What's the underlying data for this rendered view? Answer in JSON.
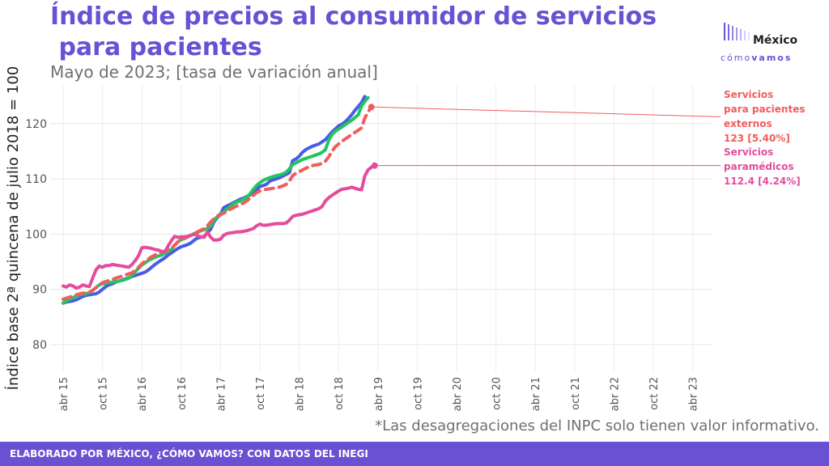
{
  "header": {
    "title_line1": "Índice de precios al consumidor de servicios",
    "title_line2": " para pacientes",
    "subtitle": "Mayo de 2023; [tasa de variación anual]"
  },
  "logo": {
    "word": "México",
    "sub_light": "cómo",
    "sub_bold": "vamos"
  },
  "note": "*Las desagregaciones del INPC solo tienen valor informativo.",
  "footer": "ELABORADO POR MÉXICO, ¿CÓMO VAMOS? CON DATOS DEL INEGI",
  "colors": {
    "accent": "#6a50d3"
  },
  "chart_data": {
    "type": "line",
    "ylabel": "Índice base 2ª quincena de julio 2018 = 100",
    "xlabel": "",
    "ylim": [
      75,
      127
    ],
    "yticks": [
      80,
      90,
      100,
      110,
      120
    ],
    "xticks": [
      "abr 15",
      "oct 15",
      "abr 16",
      "oct 16",
      "abr 17",
      "oct 17",
      "abr 18",
      "oct 18",
      "abr 19",
      "oct 19",
      "abr 20",
      "oct 20",
      "abr 21",
      "oct 21",
      "abr 22",
      "oct 22",
      "abr 23"
    ],
    "grid": true,
    "x_start": "abr 15",
    "x_step": "quincena",
    "series": [
      {
        "color": "#4a5be6",
        "dash": false,
        "values": [
          87.5,
          87.7,
          87.8,
          87.9,
          88.1,
          88.4,
          88.7,
          88.9,
          89.0,
          89.1,
          89.2,
          89.5,
          90.0,
          90.5,
          90.8,
          91.0,
          91.3,
          91.5,
          91.7,
          91.9,
          92.1,
          92.3,
          92.5,
          92.7,
          92.9,
          93.1,
          93.5,
          94.0,
          94.5,
          94.9,
          95.3,
          95.7,
          96.2,
          96.6,
          97.0,
          97.4,
          97.7,
          97.9,
          98.1,
          98.4,
          98.9,
          99.3,
          99.4,
          99.6,
          100.2,
          100.9,
          102.2,
          103.0,
          103.6,
          104.8,
          105.1,
          105.4,
          105.7,
          106.0,
          106.3,
          106.5,
          106.8,
          107.1,
          107.4,
          108.0,
          108.6,
          108.8,
          109.0,
          109.6,
          109.8,
          110.0,
          110.2,
          110.5,
          110.8,
          111.1,
          113.3,
          113.6,
          114.1,
          114.8,
          115.3,
          115.6,
          115.9,
          116.1,
          116.3,
          116.7,
          117.1,
          117.8,
          118.5,
          119.0,
          119.6,
          119.9,
          120.3,
          120.9,
          121.6,
          122.4,
          123.1,
          123.8,
          124.9
        ]
      },
      {
        "color": "#22c55e",
        "dash": false,
        "values": [
          87.5,
          87.9,
          88.2,
          88.5,
          88.8,
          89.0,
          89.1,
          89.2,
          89.4,
          89.8,
          90.3,
          90.8,
          91.0,
          91.1,
          91.2,
          91.3,
          91.4,
          91.5,
          91.6,
          91.8,
          92.0,
          92.5,
          93.2,
          93.8,
          94.4,
          94.8,
          95.2,
          95.5,
          95.8,
          96.0,
          96.2,
          96.5,
          96.8,
          97.2,
          98.0,
          98.6,
          99.0,
          99.2,
          99.5,
          99.8,
          100.1,
          100.3,
          100.6,
          100.8,
          101.0,
          101.5,
          102.5,
          103.2,
          103.7,
          104.0,
          104.5,
          105.0,
          105.5,
          105.8,
          106.0,
          106.3,
          106.7,
          107.3,
          108.1,
          108.8,
          109.3,
          109.7,
          110.0,
          110.2,
          110.4,
          110.6,
          110.7,
          110.9,
          111.2,
          111.8,
          112.6,
          112.9,
          113.2,
          113.5,
          113.7,
          113.9,
          114.1,
          114.3,
          114.5,
          114.8,
          115.3,
          117.0,
          118.0,
          118.6,
          119.0,
          119.4,
          119.8,
          120.2,
          120.6,
          121.1,
          121.6,
          123.2,
          124.0,
          124.7
        ]
      },
      {
        "color": "#f25c5c",
        "dash": true,
        "values": [
          88.2,
          88.4,
          88.6,
          88.8,
          89.0,
          89.2,
          89.3,
          89.4,
          89.5,
          89.8,
          90.3,
          90.8,
          91.2,
          91.4,
          91.6,
          91.8,
          92.0,
          92.2,
          92.4,
          92.6,
          92.8,
          93.0,
          93.4,
          94.0,
          94.6,
          95.1,
          95.5,
          95.9,
          96.2,
          96.5,
          96.7,
          96.9,
          97.1,
          97.4,
          98.0,
          98.6,
          99.0,
          99.2,
          99.5,
          99.8,
          100.1,
          100.4,
          100.7,
          101.0,
          101.5,
          102.2,
          102.8,
          103.2,
          103.5,
          103.8,
          104.1,
          104.5,
          104.8,
          105.1,
          105.4,
          105.6,
          106.0,
          106.5,
          107.0,
          107.5,
          107.8,
          108.0,
          108.1,
          108.2,
          108.3,
          108.4,
          108.5,
          108.7,
          109.0,
          109.6,
          110.6,
          111.0,
          111.3,
          111.6,
          111.9,
          112.2,
          112.4,
          112.5,
          112.6,
          112.8,
          113.2,
          114.0,
          115.0,
          115.8,
          116.3,
          116.8,
          117.2,
          117.6,
          118.0,
          118.4,
          118.8,
          119.2,
          121.0,
          122.1,
          123.0
        ]
      },
      {
        "color": "#e44d9c",
        "dash": false,
        "values": [
          90.6,
          90.4,
          90.8,
          90.6,
          90.2,
          90.4,
          90.8,
          90.6,
          90.5,
          92.0,
          93.5,
          94.2,
          94.0,
          94.3,
          94.3,
          94.5,
          94.4,
          94.3,
          94.2,
          94.1,
          94.0,
          94.5,
          95.2,
          96.1,
          97.5,
          97.6,
          97.5,
          97.4,
          97.2,
          97.1,
          96.9,
          96.8,
          97.8,
          98.8,
          99.6,
          99.4,
          99.5,
          99.5,
          99.6,
          99.8,
          100.0,
          99.7,
          99.5,
          99.4,
          100.4,
          99.4,
          98.9,
          98.9,
          99.1,
          99.8,
          100.1,
          100.2,
          100.3,
          100.4,
          100.4,
          100.5,
          100.6,
          100.8,
          101.0,
          101.5,
          101.8,
          101.6,
          101.6,
          101.7,
          101.8,
          101.9,
          101.9,
          101.9,
          102.0,
          102.5,
          103.2,
          103.4,
          103.5,
          103.6,
          103.8,
          104.0,
          104.2,
          104.4,
          104.6,
          105.0,
          106.0,
          106.6,
          107.0,
          107.4,
          107.8,
          108.1,
          108.2,
          108.3,
          108.5,
          108.3,
          108.1,
          108.0,
          110.5,
          111.6,
          112.1,
          112.4
        ]
      }
    ],
    "annotations": [
      {
        "lines": [
          "Servicios",
          "para pacientes",
          "externos",
          "123 [5.40%]"
        ],
        "color": "#f25c5c",
        "series_index": 2
      },
      {
        "lines": [
          "Servicios",
          "paramédicos",
          "112.4 [4.24%]"
        ],
        "color": "#e44d9c",
        "series_index": 3
      }
    ]
  }
}
